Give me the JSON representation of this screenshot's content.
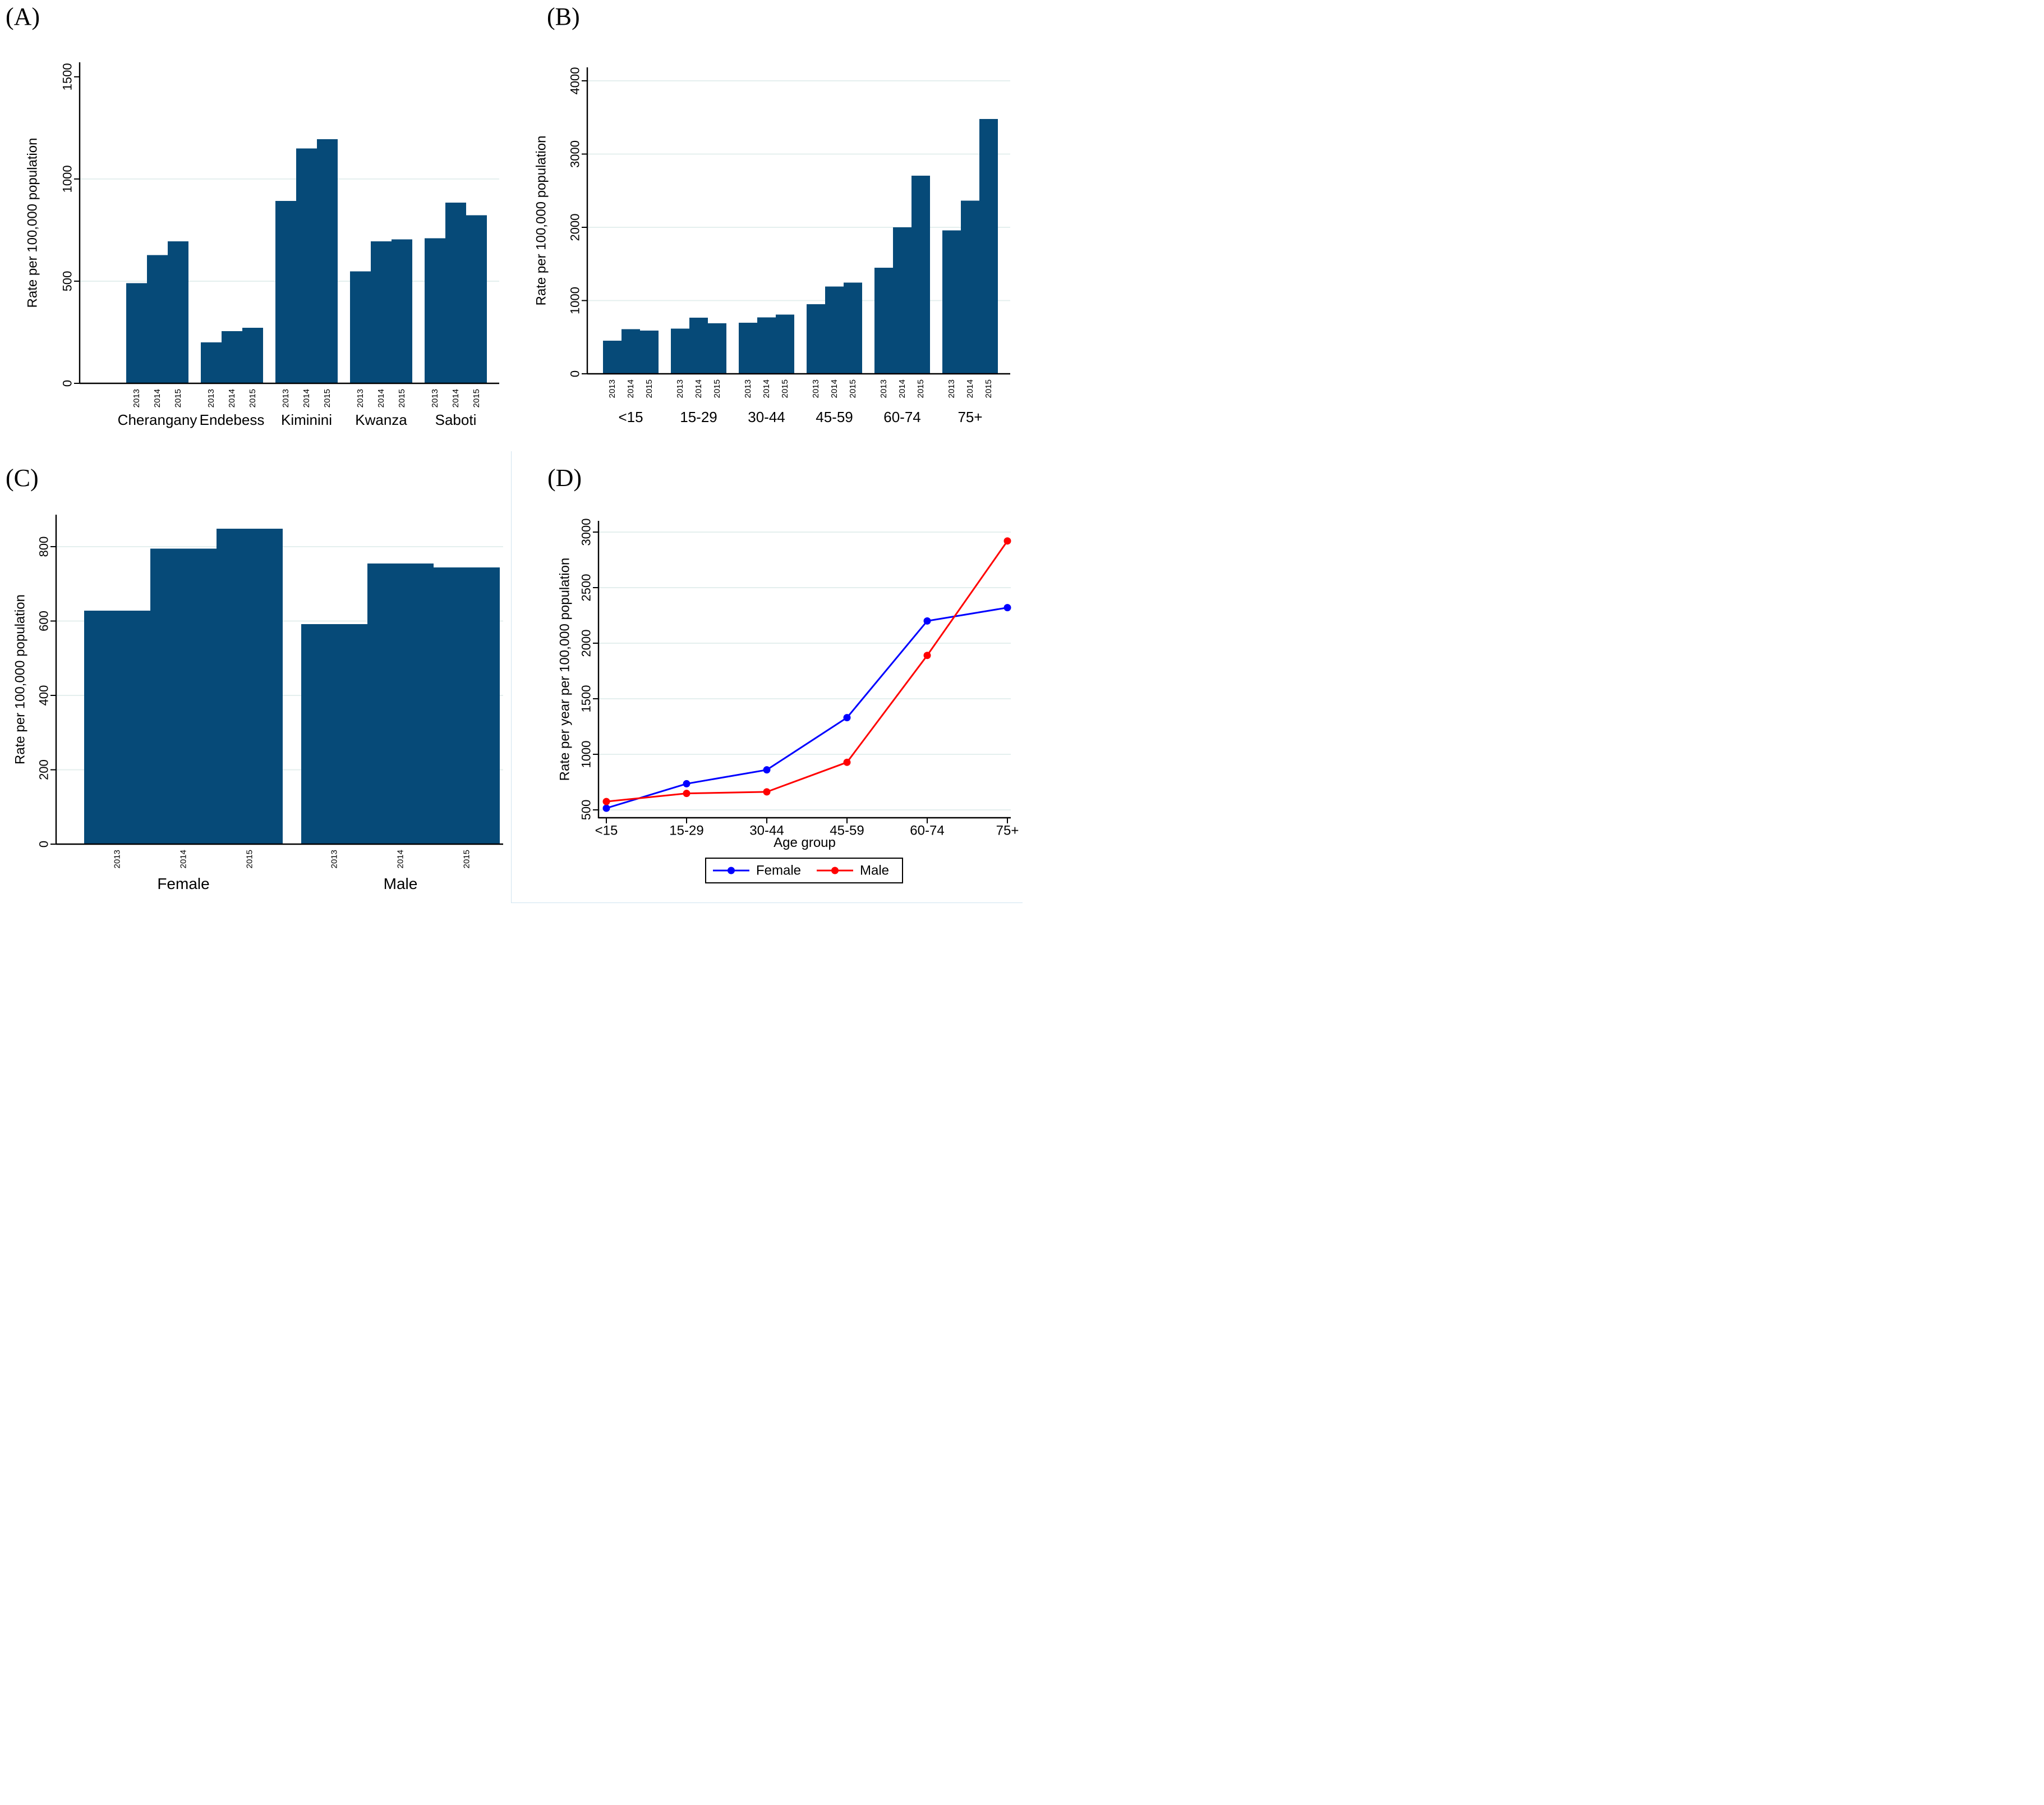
{
  "colors": {
    "bar": "#064a78",
    "grid": "#e4efee",
    "female": "#0000ff",
    "male": "#ff0000",
    "axis": "#000000"
  },
  "chart_data": [
    {
      "panel_letter": "(A)",
      "type": "bar",
      "title": "",
      "ylabel": "Rate per 100,000 population",
      "ylim": [
        0,
        1571
      ],
      "yticks": [
        0,
        500,
        1000,
        1500
      ],
      "gridlines": [
        500,
        1000
      ],
      "years": [
        "2013",
        "2014",
        "2015"
      ],
      "groups": [
        {
          "label": "Cherangany",
          "values": [
            490,
            628,
            695
          ]
        },
        {
          "label": "Endebess",
          "values": [
            200,
            255,
            272
          ]
        },
        {
          "label": "Kiminini",
          "values": [
            893,
            1150,
            1195
          ]
        },
        {
          "label": "Kwanza",
          "values": [
            548,
            695,
            705
          ]
        },
        {
          "label": "Saboti",
          "values": [
            710,
            885,
            823
          ]
        }
      ]
    },
    {
      "panel_letter": "(B)",
      "type": "bar",
      "title": "",
      "ylabel": "Rate per 100,000 population",
      "ylim": [
        0,
        4184
      ],
      "yticks": [
        0,
        1000,
        2000,
        3000,
        4000
      ],
      "gridlines": [
        1000,
        2000,
        3000,
        4000
      ],
      "years": [
        "2013",
        "2014",
        "2015"
      ],
      "groups": [
        {
          "label": "<15",
          "values": [
            452,
            608,
            590
          ]
        },
        {
          "label": "15-29",
          "values": [
            615,
            768,
            690
          ]
        },
        {
          "label": "30-44",
          "values": [
            697,
            770,
            808
          ]
        },
        {
          "label": "45-59",
          "values": [
            950,
            1190,
            1245
          ]
        },
        {
          "label": "60-74",
          "values": [
            1450,
            2000,
            2705
          ]
        },
        {
          "label": "75+",
          "values": [
            1958,
            2365,
            3480
          ]
        }
      ]
    },
    {
      "panel_letter": "(C)",
      "type": "bar",
      "title": "",
      "ylabel": "Rate per 100,000 population",
      "ylim": [
        0,
        886
      ],
      "yticks": [
        0,
        200,
        400,
        600,
        800
      ],
      "gridlines": [
        200,
        400,
        600,
        800
      ],
      "years": [
        "2013",
        "2014",
        "2015"
      ],
      "groups": [
        {
          "label": "Female",
          "values": [
            628,
            795,
            848
          ]
        },
        {
          "label": "Male",
          "values": [
            592,
            755,
            744
          ]
        }
      ]
    },
    {
      "panel_letter": "(D)",
      "type": "line",
      "title": "",
      "ylabel": "Rate per year per 100,000 population",
      "xlabel": "Age group",
      "ylim": [
        429,
        3101
      ],
      "yticks": [
        500,
        1000,
        1500,
        2000,
        2500,
        3000
      ],
      "gridlines": [
        500,
        1000,
        1500,
        2000,
        2500,
        3000
      ],
      "categories": [
        "<15",
        "15-29",
        "30-44",
        "45-59",
        "60-74",
        "75+"
      ],
      "series": [
        {
          "name": "Female",
          "color_key": "female",
          "values": [
            515,
            735,
            860,
            1330,
            2200,
            2320
          ]
        },
        {
          "name": "Male",
          "color_key": "male",
          "values": [
            575,
            648,
            662,
            928,
            1890,
            2920
          ]
        }
      ],
      "legend": {
        "labels": [
          "Female",
          "Male"
        ],
        "position": "bottom-center"
      }
    }
  ]
}
